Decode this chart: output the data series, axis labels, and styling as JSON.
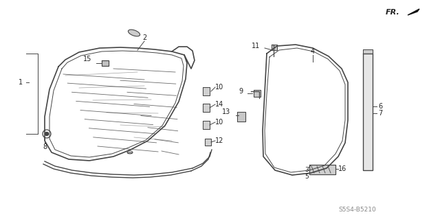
{
  "bg_color": "#ffffff",
  "line_color": "#444444",
  "text_color": "#222222",
  "diagram_code": "S5S4-B5210",
  "fr_label": "FR.",
  "label_fontsize": 7.0
}
